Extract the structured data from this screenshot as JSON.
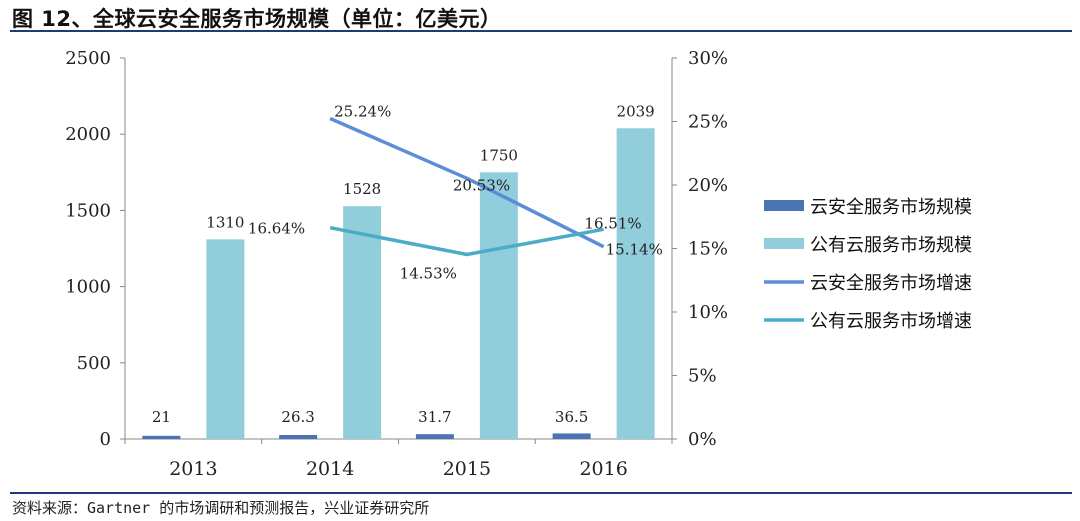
{
  "header": {
    "title": "图 12、全球云安全服务市场规模（单位：亿美元）"
  },
  "footer": {
    "source": "资料来源：Gartner 的市场调研和预测报告，兴业证券研究所"
  },
  "chart_data": {
    "type": "bar",
    "title": "",
    "categories": [
      "2013",
      "2014",
      "2015",
      "2016"
    ],
    "y_left": {
      "ylim": [
        0,
        2500
      ],
      "ticks": [
        "0",
        "500",
        "1000",
        "1500",
        "2000",
        "2500"
      ]
    },
    "y_right": {
      "ylim": [
        0,
        30
      ],
      "ticks": [
        "0%",
        "5%",
        "10%",
        "15%",
        "20%",
        "25%",
        "30%"
      ]
    },
    "grid": false,
    "legend_position": "right",
    "series": [
      {
        "name": "云安全服务市场规模",
        "type": "bar",
        "axis": "left",
        "color": "#4a74b4",
        "values": [
          21,
          26.3,
          31.7,
          36.5
        ],
        "labels": [
          "21",
          "26.3",
          "31.7",
          "36.5"
        ]
      },
      {
        "name": "公有云服务市场规模",
        "type": "bar",
        "axis": "left",
        "color": "#92cddc",
        "values": [
          1310,
          1528,
          1750,
          2039
        ],
        "labels": [
          "1310",
          "1528",
          "1750",
          "2039"
        ]
      },
      {
        "name": "云安全服务市场增速",
        "type": "line",
        "axis": "right",
        "color": "#5b8ed6",
        "values": [
          null,
          25.24,
          20.53,
          15.14
        ],
        "labels": [
          "",
          "25.24%",
          "20.53%",
          "15.14%"
        ]
      },
      {
        "name": "公有云服务市场增速",
        "type": "line",
        "axis": "right",
        "color": "#4bacc6",
        "values": [
          null,
          16.64,
          14.53,
          16.51
        ],
        "labels": [
          "",
          "16.64%",
          "14.53%",
          "16.51%"
        ]
      }
    ]
  }
}
